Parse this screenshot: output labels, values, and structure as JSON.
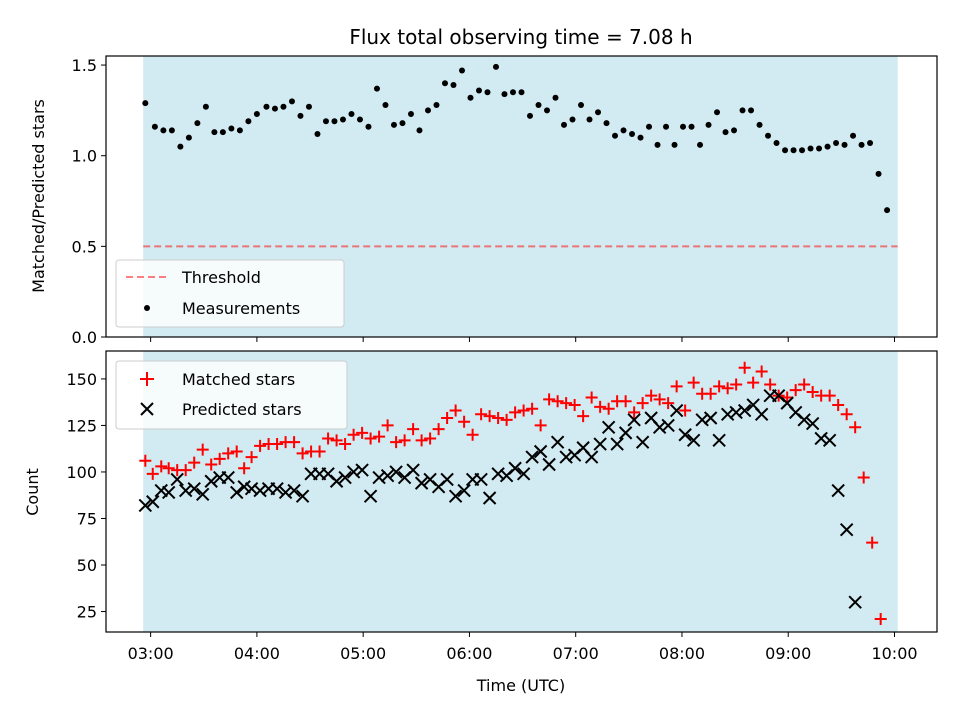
{
  "figure": {
    "title": "Flux total observing time = 7.08 h",
    "xlabel": "Time (UTC)",
    "xticks": [
      "03:00",
      "04:00",
      "05:00",
      "06:00",
      "07:00",
      "08:00",
      "09:00",
      "10:00"
    ]
  },
  "colors": {
    "shade": "#add8e6",
    "threshold": "#ff0000",
    "matched": "#ff0000",
    "predicted": "#000000",
    "measurements": "#000000"
  },
  "chart_data": [
    {
      "type": "scatter",
      "ylabel": "Matched/Predicted stars",
      "xlim": [
        2.58,
        10.4
      ],
      "ylim": [
        0,
        1.55
      ],
      "yticks": [
        0.0,
        0.5,
        1.0,
        1.5
      ],
      "yticklabels": [
        "0.0",
        "0.5",
        "1.0",
        "1.5"
      ],
      "shaded_span": [
        2.93,
        10.03
      ],
      "threshold": {
        "name": "Threshold",
        "value": 0.5,
        "style": "dashed"
      },
      "legend_placement": "lower-left",
      "series": [
        {
          "name": "Measurements",
          "marker": "dot",
          "points": [
            [
              2.95,
              1.29
            ],
            [
              3.04,
              1.16
            ],
            [
              3.12,
              1.14
            ],
            [
              3.2,
              1.14
            ],
            [
              3.28,
              1.05
            ],
            [
              3.36,
              1.1
            ],
            [
              3.44,
              1.18
            ],
            [
              3.52,
              1.27
            ],
            [
              3.6,
              1.13
            ],
            [
              3.68,
              1.13
            ],
            [
              3.76,
              1.15
            ],
            [
              3.84,
              1.14
            ],
            [
              3.92,
              1.19
            ],
            [
              4.0,
              1.23
            ],
            [
              4.09,
              1.27
            ],
            [
              4.17,
              1.26
            ],
            [
              4.25,
              1.27
            ],
            [
              4.33,
              1.3
            ],
            [
              4.41,
              1.22
            ],
            [
              4.49,
              1.27
            ],
            [
              4.57,
              1.12
            ],
            [
              4.65,
              1.19
            ],
            [
              4.73,
              1.19
            ],
            [
              4.81,
              1.2
            ],
            [
              4.89,
              1.23
            ],
            [
              4.97,
              1.2
            ],
            [
              5.05,
              1.16
            ],
            [
              5.13,
              1.37
            ],
            [
              5.21,
              1.28
            ],
            [
              5.29,
              1.17
            ],
            [
              5.37,
              1.18
            ],
            [
              5.45,
              1.23
            ],
            [
              5.53,
              1.14
            ],
            [
              5.61,
              1.25
            ],
            [
              5.69,
              1.28
            ],
            [
              5.77,
              1.4
            ],
            [
              5.85,
              1.39
            ],
            [
              5.93,
              1.47
            ],
            [
              6.01,
              1.32
            ],
            [
              6.09,
              1.36
            ],
            [
              6.17,
              1.35
            ],
            [
              6.25,
              1.49
            ],
            [
              6.33,
              1.34
            ],
            [
              6.41,
              1.35
            ],
            [
              6.49,
              1.35
            ],
            [
              6.57,
              1.22
            ],
            [
              6.65,
              1.28
            ],
            [
              6.73,
              1.25
            ],
            [
              6.81,
              1.32
            ],
            [
              6.89,
              1.17
            ],
            [
              6.97,
              1.2
            ],
            [
              7.05,
              1.28
            ],
            [
              7.13,
              1.2
            ],
            [
              7.21,
              1.24
            ],
            [
              7.29,
              1.18
            ],
            [
              7.37,
              1.11
            ],
            [
              7.45,
              1.14
            ],
            [
              7.53,
              1.12
            ],
            [
              7.61,
              1.1
            ],
            [
              7.69,
              1.16
            ],
            [
              7.77,
              1.06
            ],
            [
              7.85,
              1.16
            ],
            [
              7.93,
              1.06
            ],
            [
              8.01,
              1.16
            ],
            [
              8.09,
              1.16
            ],
            [
              8.17,
              1.06
            ],
            [
              8.25,
              1.17
            ],
            [
              8.33,
              1.24
            ],
            [
              8.41,
              1.13
            ],
            [
              8.49,
              1.14
            ],
            [
              8.57,
              1.25
            ],
            [
              8.65,
              1.25
            ],
            [
              8.73,
              1.17
            ],
            [
              8.81,
              1.11
            ],
            [
              8.89,
              1.07
            ],
            [
              8.97,
              1.03
            ],
            [
              9.05,
              1.03
            ],
            [
              9.13,
              1.03
            ],
            [
              9.21,
              1.04
            ],
            [
              9.29,
              1.04
            ],
            [
              9.37,
              1.05
            ],
            [
              9.45,
              1.07
            ],
            [
              9.53,
              1.06
            ],
            [
              9.61,
              1.11
            ],
            [
              9.69,
              1.06
            ],
            [
              9.77,
              1.07
            ],
            [
              9.85,
              0.9
            ],
            [
              9.93,
              0.7
            ]
          ]
        }
      ]
    },
    {
      "type": "scatter",
      "ylabel": "Count",
      "xlim": [
        2.58,
        10.4
      ],
      "ylim": [
        14,
        165
      ],
      "yticks": [
        25,
        50,
        75,
        100,
        125,
        150
      ],
      "yticklabels": [
        "25",
        "50",
        "75",
        "100",
        "125",
        "150"
      ],
      "shaded_span": [
        2.93,
        10.03
      ],
      "legend_placement": "upper-left",
      "series": [
        {
          "name": "Matched stars",
          "marker": "plus",
          "points": [
            [
              2.95,
              106
            ],
            [
              3.02,
              99
            ],
            [
              3.1,
              103
            ],
            [
              3.17,
              102
            ],
            [
              3.25,
              101
            ],
            [
              3.33,
              101
            ],
            [
              3.41,
              105
            ],
            [
              3.49,
              112
            ],
            [
              3.57,
              104
            ],
            [
              3.65,
              107
            ],
            [
              3.73,
              110
            ],
            [
              3.81,
              111
            ],
            [
              3.88,
              102
            ],
            [
              3.95,
              108
            ],
            [
              4.03,
              114
            ],
            [
              4.11,
              115
            ],
            [
              4.19,
              115
            ],
            [
              4.27,
              116
            ],
            [
              4.35,
              116
            ],
            [
              4.43,
              110
            ],
            [
              4.51,
              111
            ],
            [
              4.59,
              111
            ],
            [
              4.67,
              118
            ],
            [
              4.75,
              117
            ],
            [
              4.83,
              115
            ],
            [
              4.91,
              120
            ],
            [
              4.99,
              121
            ],
            [
              5.07,
              118
            ],
            [
              5.15,
              119
            ],
            [
              5.23,
              125
            ],
            [
              5.31,
              116
            ],
            [
              5.39,
              117
            ],
            [
              5.47,
              123
            ],
            [
              5.55,
              117
            ],
            [
              5.63,
              118
            ],
            [
              5.71,
              123
            ],
            [
              5.79,
              129
            ],
            [
              5.87,
              133
            ],
            [
              5.95,
              127
            ],
            [
              6.03,
              120
            ],
            [
              6.11,
              131
            ],
            [
              6.19,
              130
            ],
            [
              6.27,
              129
            ],
            [
              6.35,
              128
            ],
            [
              6.43,
              132
            ],
            [
              6.51,
              133
            ],
            [
              6.59,
              134
            ],
            [
              6.67,
              125
            ],
            [
              6.75,
              139
            ],
            [
              6.83,
              138
            ],
            [
              6.91,
              137
            ],
            [
              6.99,
              136
            ],
            [
              7.07,
              130
            ],
            [
              7.15,
              140
            ],
            [
              7.23,
              135
            ],
            [
              7.31,
              134
            ],
            [
              7.39,
              138
            ],
            [
              7.47,
              138
            ],
            [
              7.55,
              132
            ],
            [
              7.63,
              137
            ],
            [
              7.71,
              141
            ],
            [
              7.79,
              139
            ],
            [
              7.87,
              137
            ],
            [
              7.95,
              146
            ],
            [
              8.03,
              133
            ],
            [
              8.11,
              148
            ],
            [
              8.19,
              142
            ],
            [
              8.27,
              142
            ],
            [
              8.35,
              146
            ],
            [
              8.43,
              145
            ],
            [
              8.51,
              147
            ],
            [
              8.59,
              156
            ],
            [
              8.67,
              148
            ],
            [
              8.75,
              154
            ],
            [
              8.83,
              147
            ],
            [
              8.91,
              141
            ],
            [
              8.99,
              140
            ],
            [
              9.07,
              144
            ],
            [
              9.15,
              147
            ],
            [
              9.23,
              143
            ],
            [
              9.31,
              141
            ],
            [
              9.39,
              141
            ],
            [
              9.47,
              136
            ],
            [
              9.55,
              131
            ],
            [
              9.63,
              124
            ],
            [
              9.71,
              97
            ],
            [
              9.79,
              62
            ],
            [
              9.87,
              21
            ]
          ]
        },
        {
          "name": "Predicted stars",
          "marker": "x",
          "points": [
            [
              2.95,
              82
            ],
            [
              3.02,
              84
            ],
            [
              3.1,
              90
            ],
            [
              3.17,
              89
            ],
            [
              3.25,
              96
            ],
            [
              3.33,
              90
            ],
            [
              3.41,
              91
            ],
            [
              3.49,
              88
            ],
            [
              3.57,
              95
            ],
            [
              3.65,
              97
            ],
            [
              3.73,
              97
            ],
            [
              3.81,
              89
            ],
            [
              3.88,
              92
            ],
            [
              3.95,
              91
            ],
            [
              4.03,
              90
            ],
            [
              4.11,
              91
            ],
            [
              4.19,
              91
            ],
            [
              4.27,
              89
            ],
            [
              4.35,
              90
            ],
            [
              4.43,
              87
            ],
            [
              4.51,
              99
            ],
            [
              4.59,
              99
            ],
            [
              4.67,
              99
            ],
            [
              4.75,
              95
            ],
            [
              4.83,
              97
            ],
            [
              4.91,
              100
            ],
            [
              4.99,
              101
            ],
            [
              5.07,
              87
            ],
            [
              5.15,
              97
            ],
            [
              5.23,
              98
            ],
            [
              5.31,
              100
            ],
            [
              5.39,
              97
            ],
            [
              5.47,
              101
            ],
            [
              5.55,
              94
            ],
            [
              5.63,
              96
            ],
            [
              5.71,
              92
            ],
            [
              5.79,
              96
            ],
            [
              5.87,
              87
            ],
            [
              5.95,
              90
            ],
            [
              6.03,
              96
            ],
            [
              6.11,
              96
            ],
            [
              6.19,
              86
            ],
            [
              6.27,
              99
            ],
            [
              6.35,
              98
            ],
            [
              6.43,
              102
            ],
            [
              6.51,
              99
            ],
            [
              6.59,
              108
            ],
            [
              6.67,
              111
            ],
            [
              6.75,
              104
            ],
            [
              6.83,
              116
            ],
            [
              6.91,
              108
            ],
            [
              6.99,
              109
            ],
            [
              7.07,
              113
            ],
            [
              7.15,
              108
            ],
            [
              7.23,
              115
            ],
            [
              7.31,
              124
            ],
            [
              7.39,
              115
            ],
            [
              7.47,
              121
            ],
            [
              7.55,
              128
            ],
            [
              7.63,
              116
            ],
            [
              7.71,
              129
            ],
            [
              7.79,
              124
            ],
            [
              7.87,
              125
            ],
            [
              7.95,
              133
            ],
            [
              8.03,
              120
            ],
            [
              8.11,
              117
            ],
            [
              8.19,
              128
            ],
            [
              8.27,
              129
            ],
            [
              8.35,
              117
            ],
            [
              8.43,
              131
            ],
            [
              8.51,
              132
            ],
            [
              8.59,
              133
            ],
            [
              8.67,
              136
            ],
            [
              8.75,
              131
            ],
            [
              8.83,
              141
            ],
            [
              8.91,
              141
            ],
            [
              8.99,
              137
            ],
            [
              9.07,
              132
            ],
            [
              9.15,
              128
            ],
            [
              9.23,
              126
            ],
            [
              9.31,
              118
            ],
            [
              9.39,
              117
            ],
            [
              9.47,
              90
            ],
            [
              9.55,
              69
            ],
            [
              9.63,
              30
            ]
          ]
        }
      ]
    }
  ]
}
